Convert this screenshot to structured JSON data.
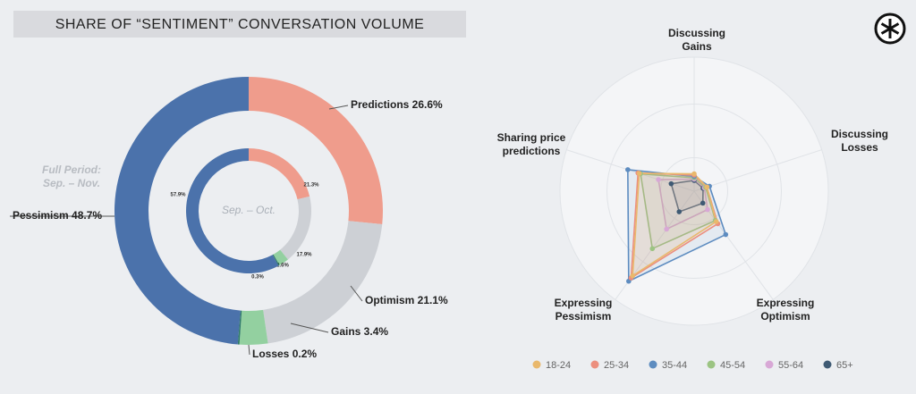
{
  "chart_data": [
    {
      "type": "donut",
      "title": "SHARE OF “SENTIMENT” CONVERSATION VOLUME",
      "colors": [
        "#ef9c8c",
        "#cdd0d5",
        "#93d0a0",
        "#2f7a6a",
        "#4b72ab"
      ],
      "series": [
        {
          "name": "Full Period: Sep. – Nov.",
          "values": [
            26.6,
            21.1,
            3.4,
            0.2,
            48.7
          ],
          "value_labels": [
            "Predictions 26.6%",
            "Optimism 21.1%",
            "Gains 3.4%",
            "Losses 0.2%",
            "Pessimism 48.7%"
          ]
        },
        {
          "name": "Sep. – Oct.",
          "values": [
            21.3,
            17.9,
            2.6,
            0.3,
            57.9
          ],
          "value_labels": [
            "21.3%",
            "17.9%",
            "2.6%",
            "0.3%",
            "57.9%"
          ]
        }
      ]
    },
    {
      "type": "radar",
      "axes": [
        "Discussing Gains",
        "Discussing Losses",
        "Expressing Optimism",
        "Expressing Pessimism",
        "Sharing price predictions"
      ],
      "rlim": [
        0,
        100
      ],
      "series": [
        {
          "name": "18-24",
          "color": "#e9b86c",
          "values": [
            13,
            10,
            28,
            78,
            43
          ]
        },
        {
          "name": "25-34",
          "color": "#ec8f7e",
          "values": [
            12,
            10,
            30,
            80,
            44
          ]
        },
        {
          "name": "35-44",
          "color": "#5d8cc0",
          "values": [
            11,
            12,
            40,
            83,
            52
          ]
        },
        {
          "name": "45-54",
          "color": "#9cc483",
          "values": [
            10,
            9,
            27,
            53,
            42
          ]
        },
        {
          "name": "55-64",
          "color": "#d8a8d6",
          "values": [
            9,
            8,
            17,
            35,
            28
          ]
        },
        {
          "name": "65+",
          "color": "#3f5a74",
          "values": [
            8,
            7,
            11,
            19,
            18
          ]
        }
      ]
    }
  ]
}
